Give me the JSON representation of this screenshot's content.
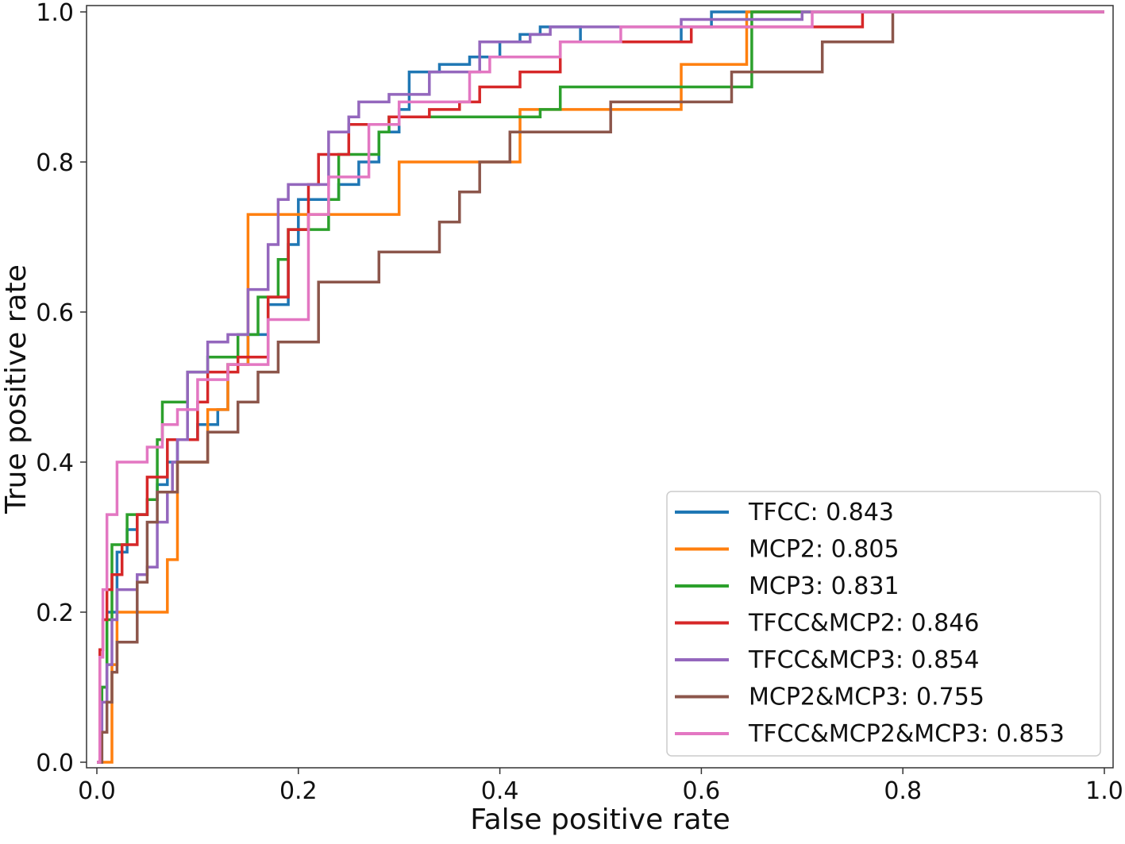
{
  "chart_data": {
    "type": "line",
    "subtype": "roc-step",
    "title": "",
    "xlabel": "False positive rate",
    "ylabel": "True positive rate",
    "xlim": [
      0,
      1
    ],
    "ylim": [
      0,
      1
    ],
    "xticks": [
      "0.0",
      "0.2",
      "0.4",
      "0.6",
      "0.8",
      "1.0"
    ],
    "yticks": [
      "0.0",
      "0.2",
      "0.4",
      "0.6",
      "0.8",
      "1.0"
    ],
    "grid": false,
    "legend_position": "bottom-right",
    "series": [
      {
        "name": "TFCC: 0.843",
        "color": "#1f77b4",
        "x": [
          0,
          0.005,
          0.005,
          0.01,
          0.01,
          0.02,
          0.02,
          0.03,
          0.03,
          0.04,
          0.04,
          0.05,
          0.05,
          0.06,
          0.06,
          0.07,
          0.07,
          0.08,
          0.08,
          0.1,
          0.1,
          0.12,
          0.12,
          0.13,
          0.13,
          0.15,
          0.15,
          0.17,
          0.17,
          0.19,
          0.19,
          0.2,
          0.2,
          0.24,
          0.24,
          0.26,
          0.26,
          0.28,
          0.28,
          0.3,
          0.3,
          0.31,
          0.31,
          0.34,
          0.34,
          0.37,
          0.37,
          0.4,
          0.4,
          0.42,
          0.42,
          0.44,
          0.44,
          0.48,
          0.48,
          0.58,
          0.58,
          0.61,
          0.61,
          1.0
        ],
        "y": [
          0,
          0,
          0.1,
          0.1,
          0.2,
          0.2,
          0.28,
          0.28,
          0.31,
          0.31,
          0.33,
          0.33,
          0.35,
          0.35,
          0.37,
          0.37,
          0.4,
          0.4,
          0.43,
          0.43,
          0.45,
          0.45,
          0.47,
          0.47,
          0.53,
          0.53,
          0.57,
          0.57,
          0.61,
          0.61,
          0.69,
          0.69,
          0.75,
          0.75,
          0.77,
          0.77,
          0.8,
          0.8,
          0.84,
          0.84,
          0.87,
          0.87,
          0.92,
          0.92,
          0.93,
          0.93,
          0.94,
          0.94,
          0.96,
          0.96,
          0.97,
          0.97,
          0.98,
          0.98,
          0.96,
          0.96,
          0.98,
          0.98,
          1.0,
          1.0
        ]
      },
      {
        "name": "MCP2: 0.805",
        "color": "#ff7f0e",
        "x": [
          0,
          0.015,
          0.015,
          0.02,
          0.02,
          0.03,
          0.03,
          0.04,
          0.04,
          0.07,
          0.07,
          0.08,
          0.08,
          0.11,
          0.11,
          0.13,
          0.13,
          0.15,
          0.15,
          0.3,
          0.3,
          0.42,
          0.42,
          0.58,
          0.58,
          0.645,
          0.645,
          0.7,
          0.7,
          1.0
        ],
        "y": [
          0,
          0,
          0.13,
          0.13,
          0.2,
          0.2,
          0.2,
          0.2,
          0.2,
          0.2,
          0.27,
          0.27,
          0.4,
          0.4,
          0.47,
          0.47,
          0.53,
          0.53,
          0.73,
          0.73,
          0.8,
          0.8,
          0.87,
          0.87,
          0.93,
          0.93,
          1.0,
          1.0,
          1.0,
          1.0
        ]
      },
      {
        "name": "MCP3: 0.831",
        "color": "#2ca02c",
        "x": [
          0,
          0.005,
          0.005,
          0.01,
          0.01,
          0.015,
          0.015,
          0.03,
          0.03,
          0.05,
          0.05,
          0.06,
          0.06,
          0.065,
          0.065,
          0.08,
          0.08,
          0.09,
          0.09,
          0.11,
          0.11,
          0.14,
          0.14,
          0.16,
          0.16,
          0.18,
          0.18,
          0.19,
          0.19,
          0.23,
          0.23,
          0.24,
          0.24,
          0.28,
          0.28,
          0.29,
          0.29,
          0.44,
          0.44,
          0.46,
          0.46,
          0.645,
          0.645,
          0.65,
          0.65,
          1.0
        ],
        "y": [
          0,
          0,
          0.1,
          0.1,
          0.19,
          0.19,
          0.29,
          0.29,
          0.33,
          0.33,
          0.35,
          0.35,
          0.43,
          0.43,
          0.48,
          0.48,
          0.48,
          0.48,
          0.52,
          0.52,
          0.54,
          0.54,
          0.57,
          0.57,
          0.62,
          0.62,
          0.67,
          0.67,
          0.71,
          0.71,
          0.75,
          0.75,
          0.81,
          0.81,
          0.84,
          0.84,
          0.86,
          0.86,
          0.87,
          0.87,
          0.9,
          0.9,
          0.9,
          0.9,
          1.0,
          1.0
        ]
      },
      {
        "name": "TFCC&MCP2: 0.846",
        "color": "#d62728",
        "x": [
          0,
          0.003,
          0.003,
          0.006,
          0.006,
          0.01,
          0.01,
          0.015,
          0.015,
          0.025,
          0.025,
          0.04,
          0.04,
          0.05,
          0.05,
          0.07,
          0.07,
          0.1,
          0.1,
          0.11,
          0.11,
          0.14,
          0.14,
          0.17,
          0.17,
          0.19,
          0.19,
          0.21,
          0.21,
          0.22,
          0.22,
          0.25,
          0.25,
          0.29,
          0.29,
          0.33,
          0.33,
          0.36,
          0.36,
          0.38,
          0.38,
          0.42,
          0.42,
          0.46,
          0.46,
          0.59,
          0.59,
          0.73,
          0.73,
          0.76,
          0.76,
          1.0
        ],
        "y": [
          0,
          0,
          0.15,
          0.15,
          0.19,
          0.19,
          0.23,
          0.23,
          0.25,
          0.25,
          0.29,
          0.29,
          0.33,
          0.33,
          0.38,
          0.38,
          0.43,
          0.43,
          0.48,
          0.48,
          0.52,
          0.52,
          0.54,
          0.54,
          0.62,
          0.62,
          0.71,
          0.71,
          0.77,
          0.77,
          0.81,
          0.81,
          0.85,
          0.85,
          0.86,
          0.86,
          0.87,
          0.87,
          0.88,
          0.88,
          0.9,
          0.9,
          0.92,
          0.92,
          0.96,
          0.96,
          0.98,
          0.98,
          0.98,
          0.98,
          1.0,
          1.0
        ]
      },
      {
        "name": "TFCC&MCP3: 0.854",
        "color": "#9467bd",
        "x": [
          0,
          0.005,
          0.005,
          0.01,
          0.01,
          0.015,
          0.015,
          0.02,
          0.02,
          0.04,
          0.04,
          0.05,
          0.05,
          0.06,
          0.06,
          0.07,
          0.07,
          0.075,
          0.075,
          0.08,
          0.08,
          0.09,
          0.09,
          0.11,
          0.11,
          0.13,
          0.13,
          0.15,
          0.15,
          0.17,
          0.17,
          0.18,
          0.18,
          0.19,
          0.19,
          0.23,
          0.23,
          0.25,
          0.25,
          0.26,
          0.26,
          0.29,
          0.29,
          0.33,
          0.33,
          0.38,
          0.38,
          0.43,
          0.43,
          0.45,
          0.45,
          0.58,
          0.58,
          0.7,
          0.7,
          1.0
        ],
        "y": [
          0,
          0,
          0.08,
          0.08,
          0.13,
          0.13,
          0.19,
          0.19,
          0.23,
          0.23,
          0.25,
          0.25,
          0.26,
          0.26,
          0.32,
          0.32,
          0.36,
          0.36,
          0.4,
          0.4,
          0.43,
          0.43,
          0.52,
          0.52,
          0.56,
          0.56,
          0.57,
          0.57,
          0.63,
          0.63,
          0.69,
          0.69,
          0.75,
          0.75,
          0.77,
          0.77,
          0.84,
          0.84,
          0.86,
          0.86,
          0.88,
          0.88,
          0.89,
          0.89,
          0.92,
          0.92,
          0.96,
          0.96,
          0.97,
          0.97,
          0.98,
          0.98,
          0.99,
          0.99,
          1.0,
          1.0
        ]
      },
      {
        "name": "MCP2&MCP3: 0.755",
        "color": "#8c564b",
        "x": [
          0,
          0.005,
          0.005,
          0.01,
          0.01,
          0.015,
          0.015,
          0.02,
          0.02,
          0.04,
          0.04,
          0.05,
          0.05,
          0.06,
          0.06,
          0.08,
          0.08,
          0.11,
          0.11,
          0.14,
          0.14,
          0.16,
          0.16,
          0.18,
          0.18,
          0.22,
          0.22,
          0.28,
          0.28,
          0.34,
          0.34,
          0.36,
          0.36,
          0.38,
          0.38,
          0.41,
          0.41,
          0.51,
          0.51,
          0.63,
          0.63,
          0.72,
          0.72,
          0.74,
          0.74,
          0.79,
          0.79,
          0.82,
          0.82,
          1.0
        ],
        "y": [
          0,
          0,
          0.04,
          0.04,
          0.08,
          0.08,
          0.12,
          0.12,
          0.16,
          0.16,
          0.24,
          0.24,
          0.32,
          0.32,
          0.36,
          0.36,
          0.4,
          0.4,
          0.44,
          0.44,
          0.48,
          0.48,
          0.52,
          0.52,
          0.56,
          0.56,
          0.64,
          0.64,
          0.68,
          0.68,
          0.72,
          0.72,
          0.76,
          0.76,
          0.8,
          0.8,
          0.84,
          0.84,
          0.88,
          0.88,
          0.92,
          0.92,
          0.96,
          0.96,
          0.96,
          0.96,
          1.0,
          1.0,
          1.0,
          1.0
        ]
      },
      {
        "name": "TFCC&MCP2&MCP3: 0.853",
        "color": "#e377c2",
        "x": [
          0,
          0.003,
          0.003,
          0.006,
          0.006,
          0.01,
          0.01,
          0.02,
          0.02,
          0.03,
          0.03,
          0.05,
          0.05,
          0.065,
          0.065,
          0.08,
          0.08,
          0.1,
          0.1,
          0.13,
          0.13,
          0.17,
          0.17,
          0.21,
          0.21,
          0.23,
          0.23,
          0.27,
          0.27,
          0.3,
          0.3,
          0.37,
          0.37,
          0.39,
          0.39,
          0.46,
          0.46,
          0.52,
          0.52,
          0.62,
          0.62,
          0.71,
          0.71,
          1.0
        ],
        "y": [
          0,
          0,
          0.14,
          0.14,
          0.23,
          0.23,
          0.33,
          0.33,
          0.4,
          0.4,
          0.4,
          0.4,
          0.42,
          0.42,
          0.45,
          0.45,
          0.47,
          0.47,
          0.51,
          0.51,
          0.53,
          0.53,
          0.59,
          0.59,
          0.73,
          0.73,
          0.78,
          0.78,
          0.85,
          0.85,
          0.88,
          0.88,
          0.92,
          0.92,
          0.94,
          0.94,
          0.96,
          0.96,
          0.98,
          0.98,
          0.98,
          0.98,
          1.0,
          1.0
        ]
      }
    ]
  }
}
